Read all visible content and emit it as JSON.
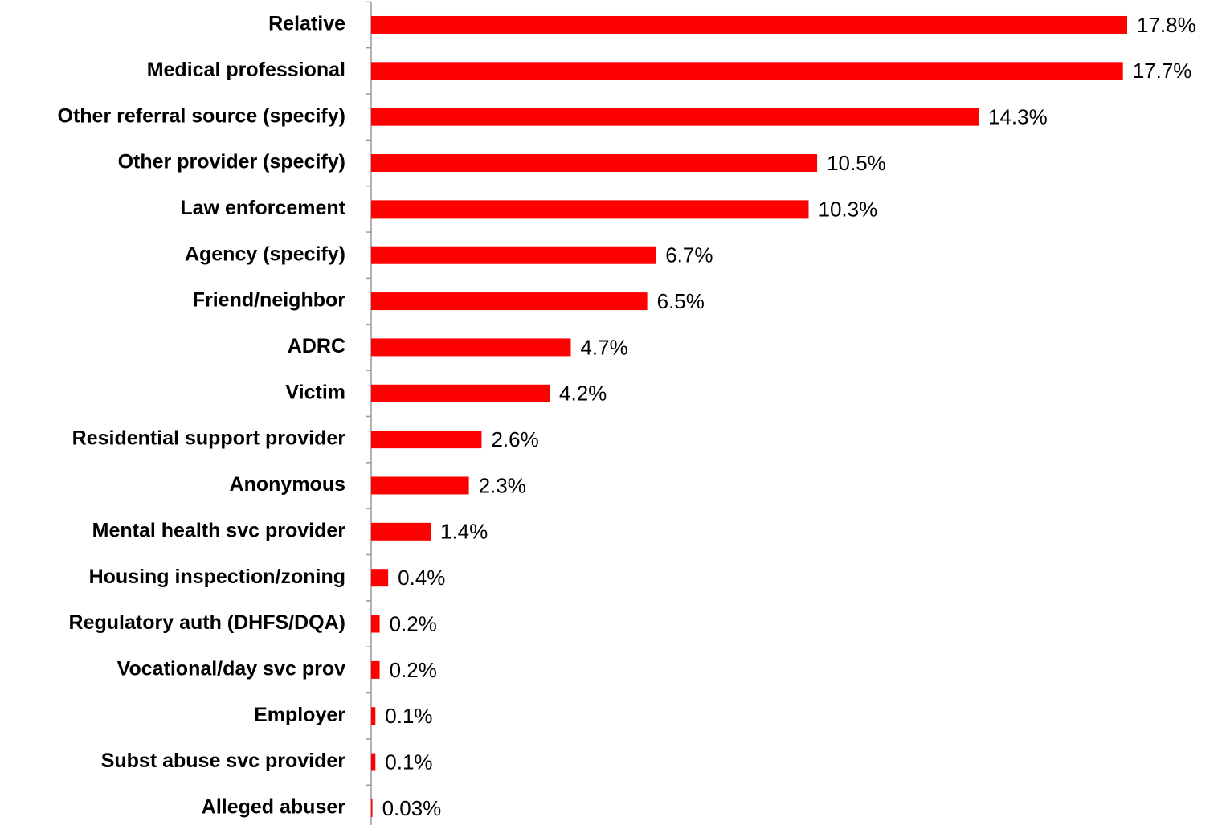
{
  "chart_data": {
    "type": "hbar",
    "categories": [
      "Relative",
      "Medical professional",
      "Other referral source (specify)",
      "Other provider (specify)",
      "Law enforcement",
      "Agency (specify)",
      "Friend/neighbor",
      "ADRC",
      "Victim",
      "Residential support provider",
      "Anonymous",
      "Mental health svc provider",
      "Housing inspection/zoning",
      "Regulatory auth (DHFS/DQA)",
      "Vocational/day svc prov",
      "Employer",
      "Subst abuse svc provider",
      "Alleged abuser"
    ],
    "values": [
      17.8,
      17.7,
      14.3,
      10.5,
      10.3,
      6.7,
      6.5,
      4.7,
      4.2,
      2.6,
      2.3,
      1.4,
      0.4,
      0.2,
      0.2,
      0.1,
      0.1,
      0.03
    ],
    "value_labels": [
      "17.8%",
      "17.7%",
      "14.3%",
      "10.5%",
      "10.3%",
      "6.7%",
      "6.5%",
      "4.7%",
      "4.2%",
      "2.6%",
      "2.3%",
      "1.4%",
      "0.4%",
      "0.2%",
      "0.2%",
      "0.1%",
      "0.1%",
      "0.03%"
    ],
    "color": "#ff0000"
  }
}
